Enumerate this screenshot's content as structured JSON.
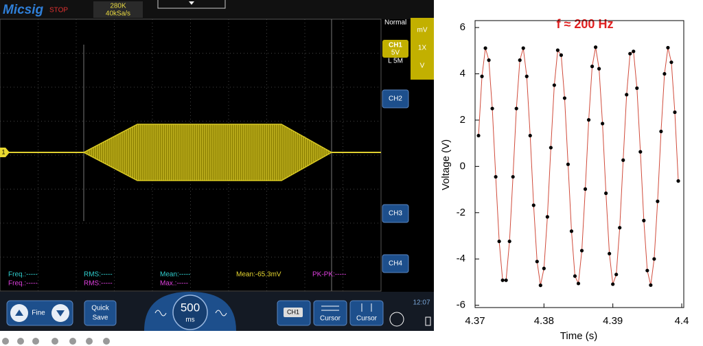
{
  "scope": {
    "brand": "Micsig",
    "status": "STOP",
    "memory": "280K",
    "sample_rate": "40kSa/s",
    "trigger_mode": "Normal",
    "unit_top": "mV",
    "ch1_label": "CH1",
    "ch1_scale": "5V",
    "probe": "1X",
    "timebase_mode": "L 5M",
    "unit_bottom": "V",
    "channels": [
      "CH2",
      "CH3",
      "CH4"
    ],
    "ch1_marker": "1",
    "measurements": [
      [
        "Freq.:-----",
        "RMS:-----",
        "Mean:-----",
        "Mean:-65.3mV",
        "PK-PK:-----"
      ],
      [
        "Freq.:-----",
        "RMS:-----",
        "Max.:-----"
      ]
    ],
    "toolbar": {
      "fine": "Fine",
      "quick_save": [
        "Quick",
        "Save"
      ],
      "timebase_value": "500",
      "timebase_unit": "ms",
      "ch_button": "CH1",
      "cursor_1": "Cursor",
      "cursor_2": "Cursor",
      "clock": "12:07"
    }
  },
  "chart_data": {
    "type": "line",
    "title": "f ≈ 200 Hz",
    "x_label": "Time (s)",
    "y_label": "Voltage (V)",
    "line_color": "#d04a3a",
    "marker_color": "#000000",
    "x": [
      4.3705,
      4.371,
      4.3715,
      4.372,
      4.3725,
      4.373,
      4.3735,
      4.374,
      4.3745,
      4.375,
      4.3755,
      4.376,
      4.3765,
      4.377,
      4.3775,
      4.378,
      4.3785,
      4.379,
      4.3795,
      4.38,
      4.3805,
      4.381,
      4.3815,
      4.382,
      4.3825,
      4.383,
      4.3835,
      4.384,
      4.3845,
      4.385,
      4.3855,
      4.386,
      4.3865,
      4.387,
      4.3875,
      4.388,
      4.3885,
      4.389,
      4.3895,
      4.39,
      4.3905,
      4.391,
      4.3915,
      4.392,
      4.3925,
      4.393,
      4.3935,
      4.394,
      4.3945,
      4.395,
      4.3955,
      4.396,
      4.3965,
      4.397,
      4.3975,
      4.398,
      4.3985,
      4.399,
      4.3995
    ],
    "values": [
      1.33,
      3.89,
      5.11,
      4.59,
      2.5,
      -0.45,
      -3.24,
      -4.92,
      -4.92,
      -3.24,
      -0.45,
      2.5,
      4.59,
      5.11,
      3.89,
      1.33,
      -1.68,
      -4.11,
      -5.14,
      -4.41,
      -2.18,
      0.81,
      3.51,
      5.02,
      4.81,
      2.95,
      0.09,
      -2.8,
      -4.74,
      -5.06,
      -3.64,
      -0.98,
      2.01,
      4.32,
      5.15,
      4.22,
      1.85,
      -1.16,
      -3.77,
      -5.09,
      -4.67,
      -2.65,
      0.27,
      3.1,
      4.87,
      4.97,
      3.38,
      0.63,
      -2.34,
      -4.5,
      -5.13,
      -4,
      -1.51,
      1.51,
      4,
      5.13,
      4.5,
      2.34,
      -0.63
    ],
    "xlim": [
      4.37,
      4.4
    ],
    "xticks": [
      4.37,
      4.38,
      4.39,
      4.4
    ],
    "ylim": [
      -6.1,
      6.3
    ],
    "yticks": [
      -6,
      -4,
      -2,
      0,
      2,
      4,
      6
    ]
  }
}
